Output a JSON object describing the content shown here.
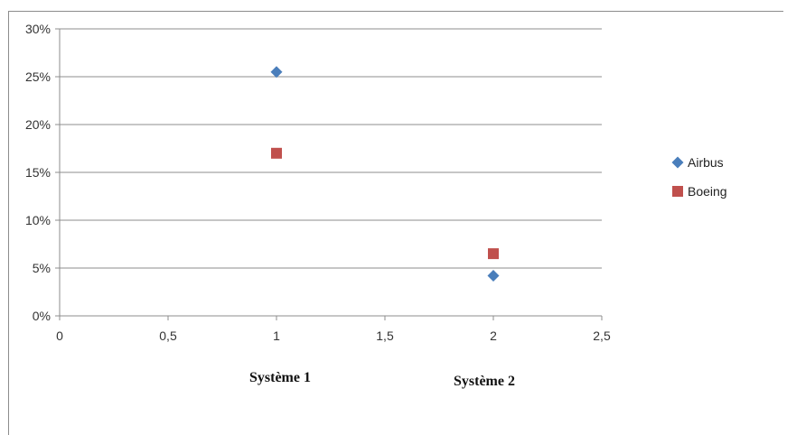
{
  "chart_data": {
    "type": "scatter",
    "title": "",
    "xlabel": "",
    "ylabel": "",
    "xlim": [
      0,
      2.5
    ],
    "ylim": [
      0,
      0.3
    ],
    "x_ticks": [
      0,
      0.5,
      1,
      1.5,
      2,
      2.5
    ],
    "x_tick_labels": [
      "0",
      "0,5",
      "1",
      "1,5",
      "2",
      "2,5"
    ],
    "y_ticks": [
      0,
      0.05,
      0.1,
      0.15,
      0.2,
      0.25,
      0.3
    ],
    "y_tick_labels": [
      "0%",
      "5%",
      "10%",
      "15%",
      "20%",
      "25%",
      "30%"
    ],
    "grid": "horizontal",
    "legend_position": "right",
    "series": [
      {
        "name": "Airbus",
        "marker": "diamond",
        "color": "#4a7ebb",
        "x": [
          1,
          2
        ],
        "y": [
          0.255,
          0.042
        ]
      },
      {
        "name": "Boeing",
        "marker": "square",
        "color": "#c0504d",
        "x": [
          1,
          2
        ],
        "y": [
          0.17,
          0.065
        ]
      }
    ],
    "annotations": [
      "Système 1",
      "Système 2"
    ]
  }
}
